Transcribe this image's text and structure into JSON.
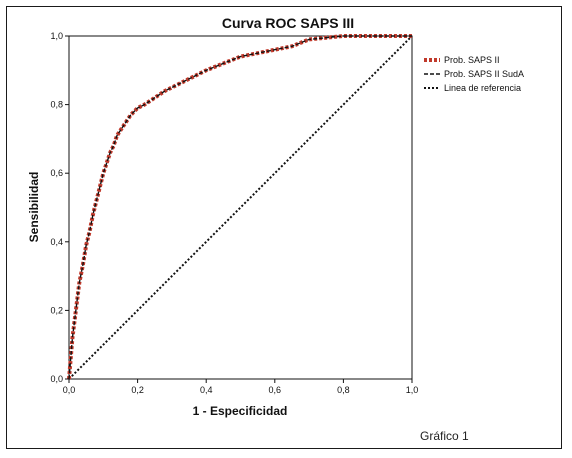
{
  "chart_data": {
    "type": "line",
    "title": "Curva ROC SAPS III",
    "xlabel": "1 - Especificidad",
    "ylabel": "Sensibilidad",
    "xlim": [
      0,
      1
    ],
    "ylim": [
      0,
      1
    ],
    "x_ticks": [
      "0,0",
      "0,2",
      "0,4",
      "0,6",
      "0,8",
      "1,0"
    ],
    "y_ticks": [
      "0,0",
      "0,2",
      "0,4",
      "0,6",
      "0,8",
      "1,0"
    ],
    "grid": false,
    "legend_position": "right",
    "series": [
      {
        "name": "Prob. SAPS II",
        "color": "#c0392b",
        "style": "thick-dashed",
        "x": [
          0.0,
          0.005,
          0.01,
          0.02,
          0.03,
          0.04,
          0.05,
          0.06,
          0.07,
          0.08,
          0.09,
          0.1,
          0.11,
          0.12,
          0.13,
          0.14,
          0.16,
          0.18,
          0.2,
          0.22,
          0.25,
          0.28,
          0.32,
          0.36,
          0.4,
          0.45,
          0.5,
          0.55,
          0.6,
          0.65,
          0.7,
          0.75,
          0.8,
          0.85,
          0.9,
          0.95,
          1.0
        ],
        "y": [
          0.0,
          0.06,
          0.12,
          0.2,
          0.28,
          0.33,
          0.39,
          0.43,
          0.48,
          0.52,
          0.56,
          0.6,
          0.63,
          0.66,
          0.68,
          0.71,
          0.74,
          0.77,
          0.79,
          0.8,
          0.82,
          0.84,
          0.86,
          0.88,
          0.9,
          0.92,
          0.94,
          0.95,
          0.96,
          0.97,
          0.99,
          0.995,
          1.0,
          1.0,
          1.0,
          1.0,
          1.0
        ]
      },
      {
        "name": "Prob. SAPS II SudA",
        "color": "#111111",
        "style": "dashed",
        "x": [
          0.0,
          0.005,
          0.01,
          0.02,
          0.03,
          0.04,
          0.05,
          0.06,
          0.07,
          0.08,
          0.09,
          0.1,
          0.11,
          0.12,
          0.13,
          0.14,
          0.16,
          0.18,
          0.2,
          0.22,
          0.25,
          0.28,
          0.32,
          0.36,
          0.4,
          0.45,
          0.5,
          0.55,
          0.6,
          0.65,
          0.7,
          0.75,
          0.8,
          0.85,
          0.9,
          0.95,
          1.0
        ],
        "y": [
          0.0,
          0.06,
          0.12,
          0.2,
          0.28,
          0.33,
          0.39,
          0.43,
          0.48,
          0.52,
          0.56,
          0.6,
          0.63,
          0.66,
          0.68,
          0.71,
          0.74,
          0.77,
          0.79,
          0.8,
          0.82,
          0.84,
          0.86,
          0.88,
          0.9,
          0.92,
          0.94,
          0.95,
          0.96,
          0.97,
          0.99,
          0.995,
          1.0,
          1.0,
          1.0,
          1.0,
          1.0
        ]
      },
      {
        "name": "Linea de referencia",
        "color": "#111111",
        "style": "dotted",
        "x": [
          0,
          1
        ],
        "y": [
          0,
          1
        ]
      }
    ],
    "caption": "Gráfico 1"
  }
}
